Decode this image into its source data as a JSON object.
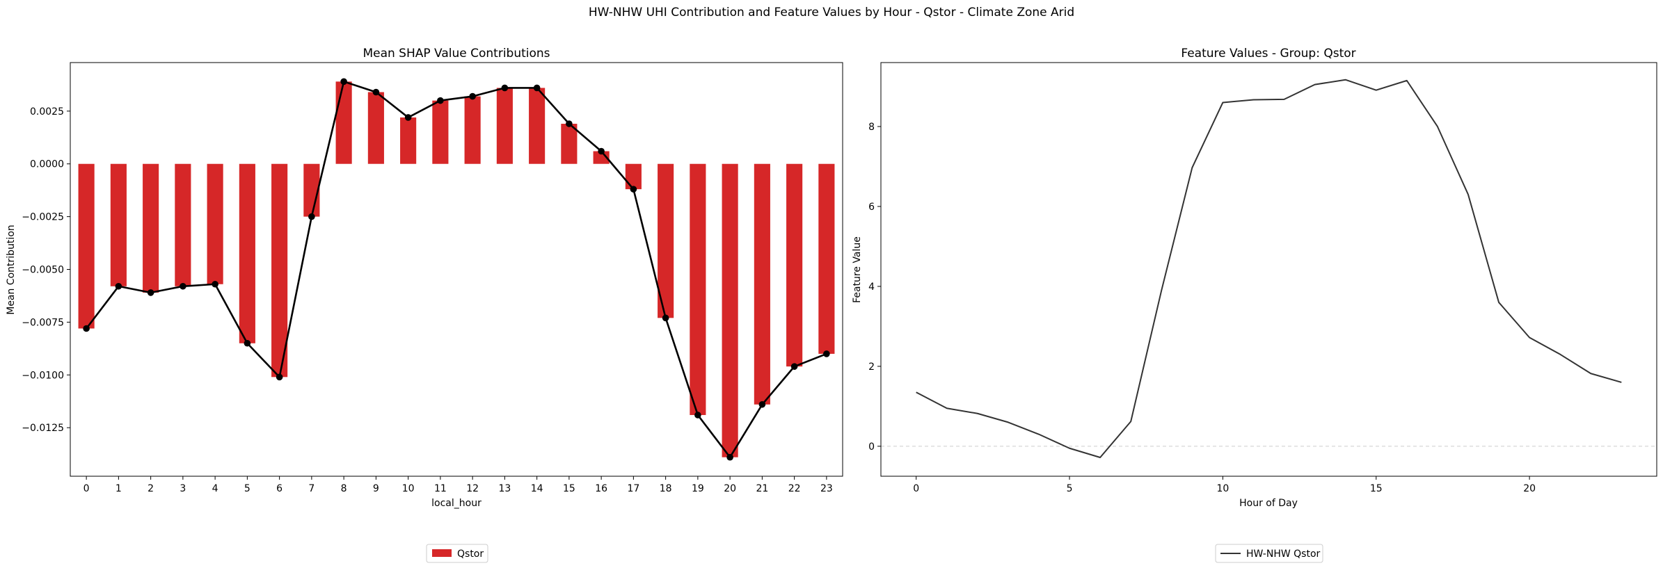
{
  "figure": {
    "suptitle": "HW-NHW UHI Contribution and Feature Values by Hour - Qstor - Climate Zone Arid"
  },
  "chart_data": [
    {
      "type": "bar",
      "title": "Mean SHAP Value Contributions",
      "xlabel": "local_hour",
      "ylabel": "Mean Contribution",
      "categories": [
        "0",
        "1",
        "2",
        "3",
        "4",
        "5",
        "6",
        "7",
        "8",
        "9",
        "10",
        "11",
        "12",
        "13",
        "14",
        "15",
        "16",
        "17",
        "18",
        "19",
        "20",
        "21",
        "22",
        "23"
      ],
      "series": [
        {
          "name": "Qstor",
          "color": "#d62728",
          "values": [
            -0.0078,
            -0.0058,
            -0.0061,
            -0.0058,
            -0.0057,
            -0.0085,
            -0.0101,
            -0.0025,
            0.0039,
            0.0034,
            0.0022,
            0.003,
            0.0032,
            0.0036,
            0.0036,
            0.0019,
            0.0006,
            -0.0012,
            -0.0073,
            -0.0119,
            -0.0139,
            -0.0114,
            -0.0096,
            -0.009
          ]
        }
      ],
      "overlay_line": {
        "color": "#000000",
        "marker": "circle"
      },
      "ylim": [
        -0.0148,
        0.0048
      ],
      "yticks": [
        0.0025,
        0.0,
        -0.0025,
        -0.005,
        -0.0075,
        -0.01,
        -0.0125
      ],
      "ytick_labels": [
        "0.0025",
        "0.0000",
        "−0.0025",
        "−0.0050",
        "−0.0075",
        "−0.0100",
        "−0.0125"
      ],
      "grid": false,
      "legend": {
        "placement": "below-center",
        "entries": [
          "Qstor"
        ]
      }
    },
    {
      "type": "line",
      "title": "Feature Values - Group: Qstor",
      "xlabel": "Hour of Day",
      "ylabel": "Feature Value",
      "x": [
        0,
        1,
        2,
        3,
        4,
        5,
        6,
        7,
        8,
        9,
        10,
        11,
        12,
        13,
        14,
        15,
        16,
        17,
        18,
        19,
        20,
        21,
        22,
        23
      ],
      "series": [
        {
          "name": "HW-NHW Qstor",
          "color": "#333333",
          "values": [
            1.35,
            0.95,
            0.82,
            0.6,
            0.3,
            -0.05,
            -0.28,
            0.62,
            3.9,
            6.97,
            8.6,
            8.67,
            8.68,
            9.05,
            9.17,
            8.91,
            9.15,
            8.0,
            6.3,
            3.6,
            2.72,
            2.3,
            1.82,
            1.6
          ]
        }
      ],
      "zero_line": {
        "style": "dashed",
        "color": "#cccccc"
      },
      "xlim": [
        -1.15,
        24.15
      ],
      "ylim": [
        -0.75,
        9.6
      ],
      "xticks": [
        0,
        5,
        10,
        15,
        20
      ],
      "yticks": [
        0,
        2,
        4,
        6,
        8
      ],
      "grid": false,
      "legend": {
        "placement": "below-center",
        "entries": [
          "HW-NHW Qstor"
        ]
      }
    }
  ]
}
